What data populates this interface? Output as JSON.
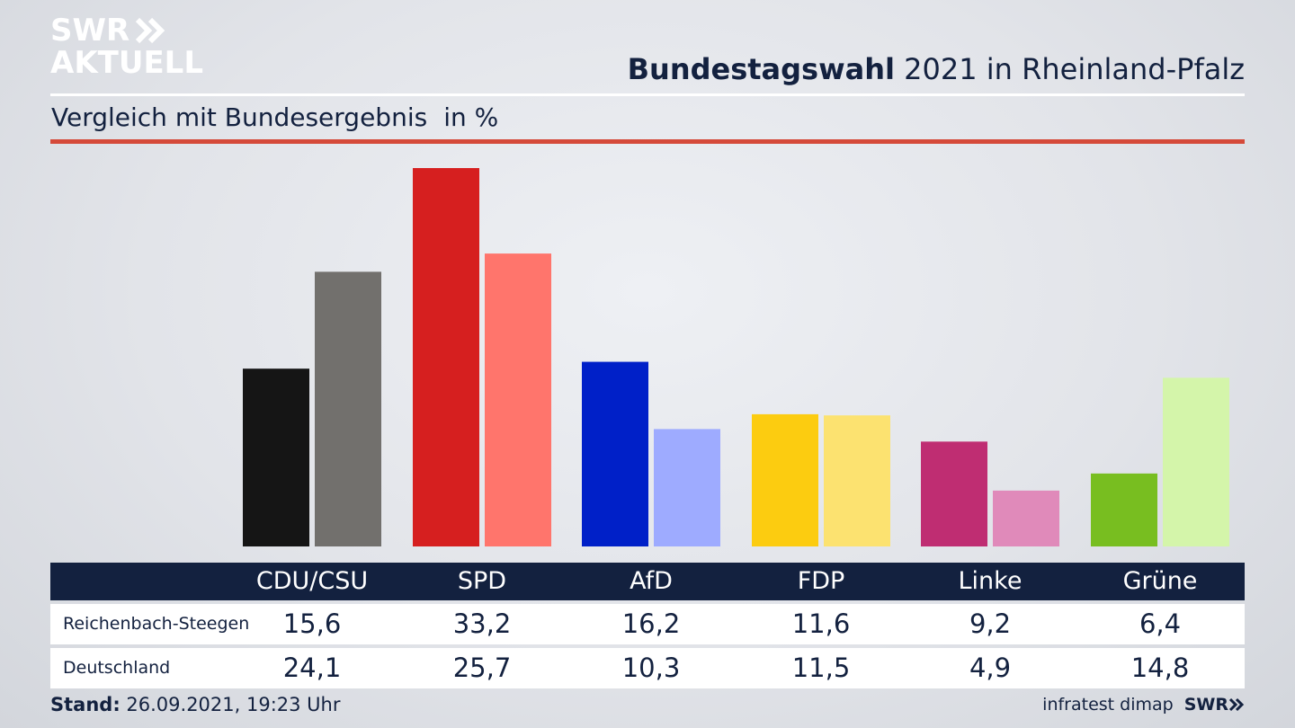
{
  "logo": {
    "line1": "SWR",
    "line2": "AKTUELL"
  },
  "header": {
    "title_bold": "Bundestagswahl",
    "title_rest": " 2021 in Rheinland-Pfalz"
  },
  "subtitle": {
    "text": "Vergleich mit Bundesergebnis",
    "unit": "in %"
  },
  "colors": {
    "navy": "#13213f",
    "accent_rule": "#d54a3a",
    "background": "#e6e8ec"
  },
  "chart_data": {
    "type": "bar",
    "categories": [
      "CDU/CSU",
      "SPD",
      "AfD",
      "FDP",
      "Linke",
      "Grüne"
    ],
    "series": [
      {
        "name": "Reichenbach-Steegen",
        "values": [
          15.6,
          33.2,
          16.2,
          11.6,
          9.2,
          6.4
        ],
        "colors": [
          "#151515",
          "#d61f1f",
          "#0020c8",
          "#fccc10",
          "#bf2d72",
          "#78be20"
        ]
      },
      {
        "name": "Deutschland",
        "values": [
          24.1,
          25.7,
          10.3,
          11.5,
          4.9,
          14.8
        ],
        "colors": [
          "#72706d",
          "#ff756c",
          "#9eabff",
          "#fce270",
          "#e08aba",
          "#d4f5aa"
        ]
      }
    ],
    "ylim": [
      0,
      33.2
    ],
    "grid": false,
    "legend": "table-below"
  },
  "table": {
    "headers": [
      "CDU/CSU",
      "SPD",
      "AfD",
      "FDP",
      "Linke",
      "Grüne"
    ],
    "rows": [
      {
        "label": "Reichenbach-Steegen",
        "values": [
          "15,6",
          "33,2",
          "16,2",
          "11,6",
          "9,2",
          "6,4"
        ]
      },
      {
        "label": "Deutschland",
        "values": [
          "24,1",
          "25,7",
          "10,3",
          "11,5",
          "4,9",
          "14,8"
        ]
      }
    ]
  },
  "footer": {
    "stand_label": "Stand:",
    "stand_value": " 26.09.2021, 19:23 Uhr",
    "source": "infratest dimap",
    "brand": "SWR"
  }
}
